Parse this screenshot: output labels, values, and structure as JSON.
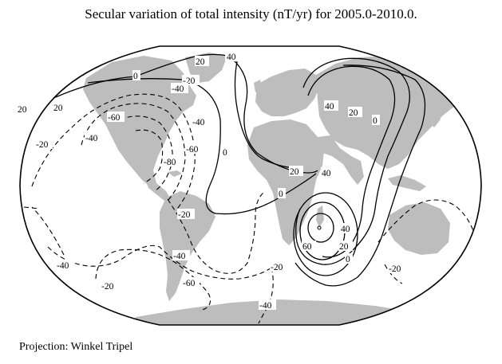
{
  "title": "Secular variation of total intensity (nT/yr) for 2005.0-2010.0.",
  "projection_note": "Projection: Winkel Tripel",
  "colors": {
    "land": "#bdbdbd",
    "contour": "#000000",
    "background": "#ffffff"
  },
  "contour_labels": [
    {
      "id": "c1",
      "text": "20"
    },
    {
      "id": "c2",
      "text": "40"
    },
    {
      "id": "c3",
      "text": "0"
    },
    {
      "id": "c4",
      "text": "-20"
    },
    {
      "id": "c5",
      "text": "-40"
    },
    {
      "id": "c6",
      "text": "-60"
    },
    {
      "id": "c7",
      "text": "-80"
    },
    {
      "id": "c8",
      "text": "-60"
    },
    {
      "id": "c9",
      "text": "-40"
    },
    {
      "id": "c10",
      "text": "20"
    },
    {
      "id": "c11",
      "text": "-20"
    },
    {
      "id": "c12",
      "text": "-40"
    },
    {
      "id": "c13",
      "text": "0"
    },
    {
      "id": "c14",
      "text": "-20"
    },
    {
      "id": "c15",
      "text": "40"
    },
    {
      "id": "c16",
      "text": "20"
    },
    {
      "id": "c17",
      "text": "0"
    },
    {
      "id": "c18",
      "text": "40"
    },
    {
      "id": "c19",
      "text": "20"
    },
    {
      "id": "c20",
      "text": "0"
    },
    {
      "id": "c21",
      "text": "60"
    },
    {
      "id": "c22",
      "text": "40"
    },
    {
      "id": "c23",
      "text": "20"
    },
    {
      "id": "c24",
      "text": "0"
    },
    {
      "id": "c25",
      "text": "-20"
    },
    {
      "id": "c26",
      "text": "-40"
    },
    {
      "id": "c27",
      "text": "-60"
    },
    {
      "id": "c28",
      "text": "-20"
    },
    {
      "id": "c29",
      "text": "-40"
    },
    {
      "id": "c30",
      "text": "-40"
    },
    {
      "id": "c31",
      "text": "-20"
    },
    {
      "id": "c32",
      "text": "20"
    }
  ]
}
